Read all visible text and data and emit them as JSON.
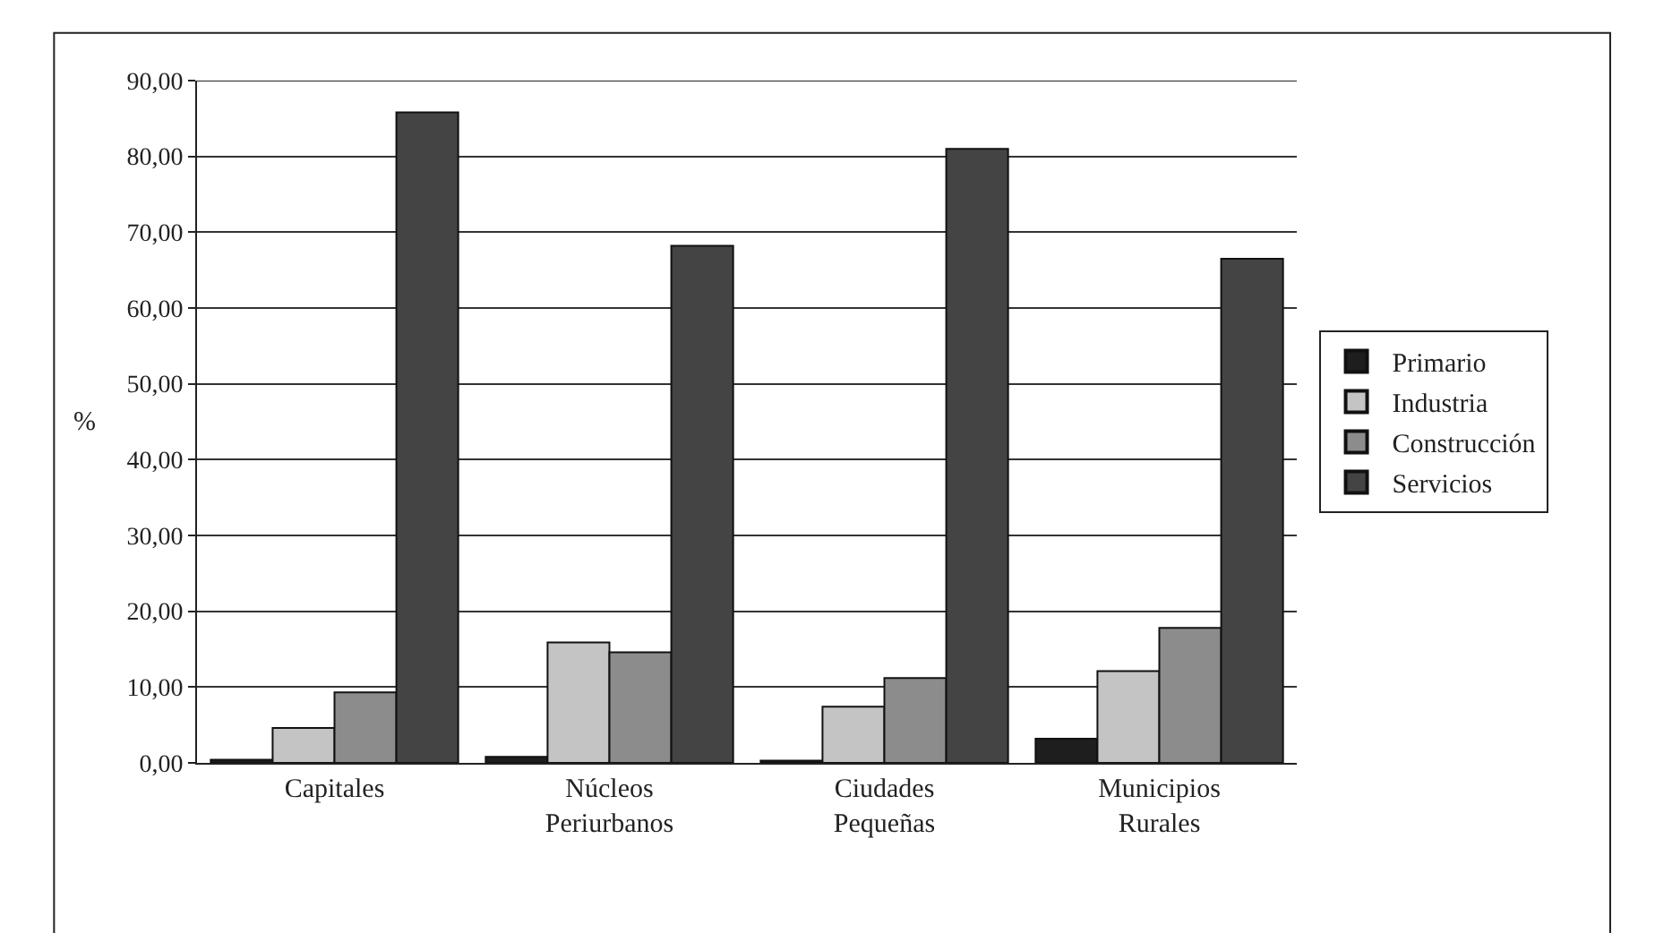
{
  "chart_data": {
    "type": "bar",
    "ylabel": "%",
    "categories": [
      "Capitales",
      "Núcleos\nPeriurbanos",
      "Ciudades\nPequeñas",
      "Municipios\nRurales"
    ],
    "series": [
      {
        "name": "Primario",
        "color": "#1e1e1e",
        "values": [
          0.4,
          0.8,
          0.3,
          3.2
        ]
      },
      {
        "name": "Industria",
        "color": "#c4c4c4",
        "values": [
          4.6,
          15.9,
          7.4,
          12.1
        ]
      },
      {
        "name": "Construcción",
        "color": "#8c8c8c",
        "values": [
          9.3,
          14.6,
          11.2,
          17.8
        ]
      },
      {
        "name": "Servicios",
        "color": "#444444",
        "values": [
          85.8,
          68.2,
          81.0,
          66.5
        ]
      }
    ],
    "ylim": [
      0,
      90
    ],
    "yticks": [
      {
        "value": 0,
        "label": "0,00"
      },
      {
        "value": 10,
        "label": "10,00"
      },
      {
        "value": 20,
        "label": "20,00"
      },
      {
        "value": 30,
        "label": "30,00"
      },
      {
        "value": 40,
        "label": "40,00"
      },
      {
        "value": 50,
        "label": "50,00"
      },
      {
        "value": 60,
        "label": "60,00"
      },
      {
        "value": 70,
        "label": "70,00"
      },
      {
        "value": 80,
        "label": "80,00"
      },
      {
        "value": 90,
        "label": "90,00"
      }
    ],
    "grid": "y",
    "legend": "right"
  }
}
